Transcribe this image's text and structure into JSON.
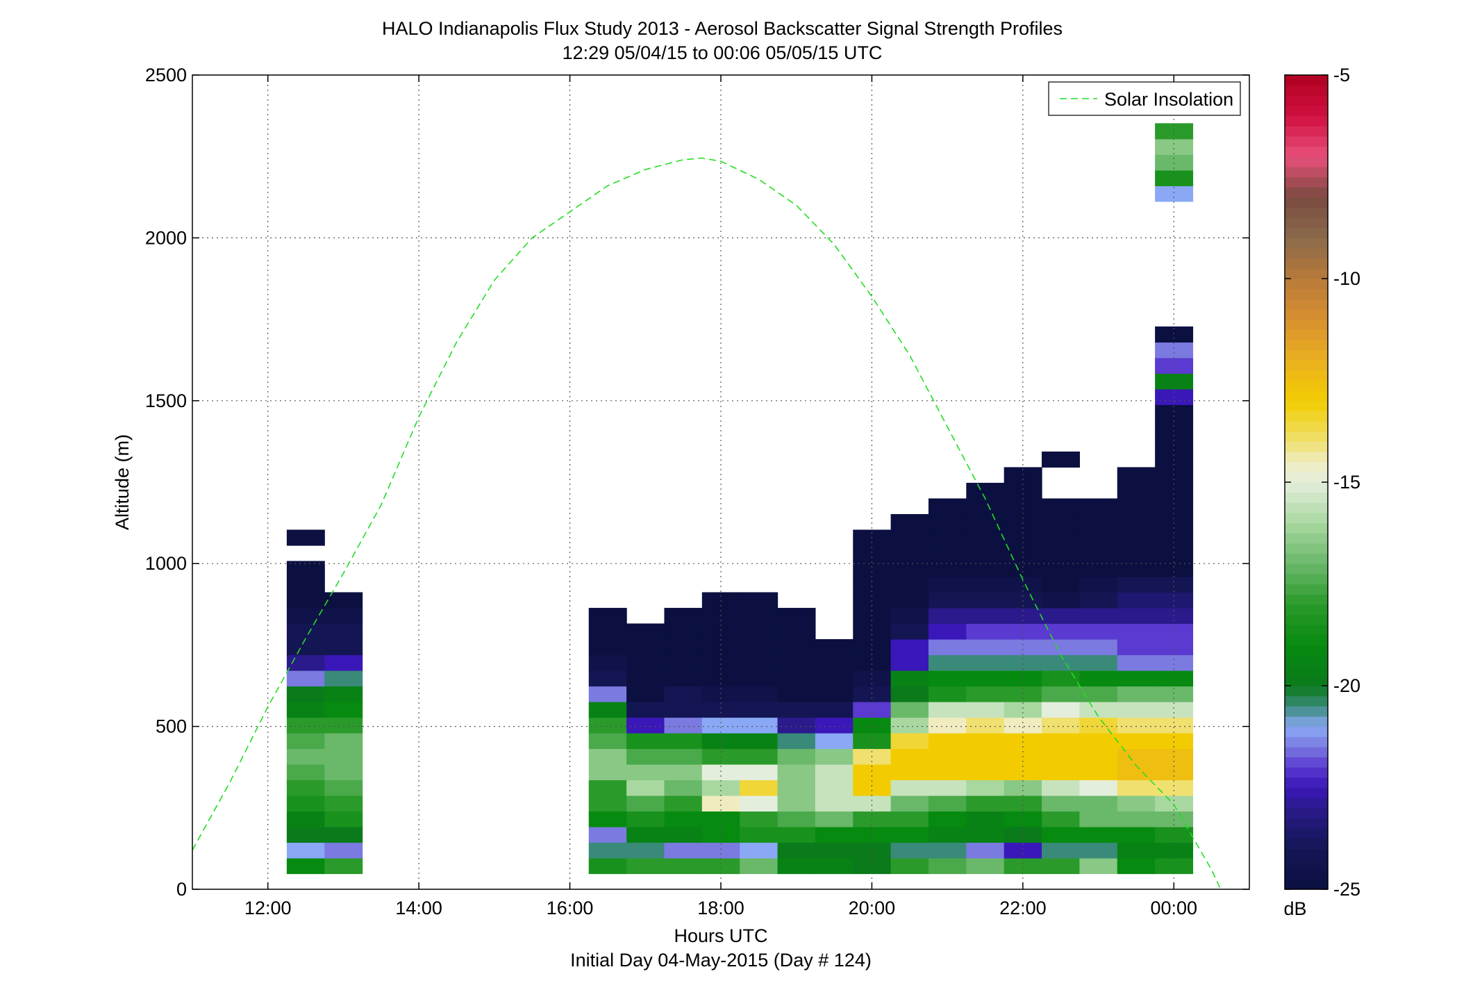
{
  "chart_data": {
    "type": "heatmap",
    "title": "HALO Indianapolis Flux Study 2013 - Aerosol Backscatter Signal Strength Profiles",
    "subtitle": "12:29 05/04/15 to 00:06 05/05/15  UTC",
    "xlabel": "Hours UTC",
    "xlabel2": "Initial Day 04-May-2015 (Day # 124)",
    "ylabel": "Altitude (m)",
    "xlim": [
      11.0,
      25.0
    ],
    "ylim": [
      0,
      2500
    ],
    "x_ticks": [
      12,
      14,
      16,
      18,
      20,
      22,
      24
    ],
    "x_tick_labels": [
      "12:00",
      "14:00",
      "16:00",
      "18:00",
      "20:00",
      "22:00",
      "00:00"
    ],
    "y_ticks": [
      0,
      500,
      1000,
      1500,
      2000,
      2500
    ],
    "y_tick_labels": [
      "0",
      "500",
      "1000",
      "1500",
      "2000",
      "2500"
    ],
    "grid": true,
    "legend": {
      "position": "top-right",
      "entries": [
        "Solar Insolation"
      ]
    },
    "colorbar": {
      "min": -25,
      "max": -5,
      "unit": "dB",
      "ticks": [
        -5,
        -10,
        -15,
        -20,
        -25
      ],
      "tick_labels": [
        "-5",
        "-10",
        "-15",
        "-20",
        "-25"
      ]
    },
    "cell_width_hours": 0.5,
    "cell_height_m": 48,
    "base_altitude_m": 48,
    "profiles": [
      {
        "t": 12.5,
        "v": [
          -19,
          -21,
          -20,
          -19.5,
          -18.5,
          -18,
          -17.5,
          -17,
          -17.5,
          -18,
          -19.5,
          -20,
          -21.5,
          -23,
          -24,
          -24,
          -24.5,
          -25,
          -25,
          -25,
          null,
          -25
        ]
      },
      {
        "t": 13.0,
        "v": [
          -18,
          -21.5,
          -20,
          -18.5,
          -18,
          -17.5,
          -17,
          -17,
          -17,
          -18,
          -19,
          -19.5,
          -20.5,
          -22.5,
          -24,
          -24,
          -24.5,
          -25
        ]
      },
      {
        "t": 16.5,
        "v": [
          -18.5,
          -20.5,
          -21.5,
          -19,
          -18,
          -18,
          -16.5,
          -16.5,
          -17.5,
          -18,
          -19.5,
          -21.5,
          -24,
          -24.5,
          -25,
          -25,
          -25
        ]
      },
      {
        "t": 17.0,
        "v": [
          -18,
          -20.5,
          -19.5,
          -18.5,
          -17.5,
          -16,
          -16.5,
          -17.5,
          -18.5,
          -22.5,
          -24,
          -25,
          -25,
          -25,
          -25,
          -25
        ]
      },
      {
        "t": 17.5,
        "v": [
          -18,
          -21.5,
          -19.5,
          -19,
          -18,
          -17,
          -16.5,
          -17.5,
          -18.5,
          -21.5,
          -24,
          -24,
          -25,
          -25,
          -25,
          -25,
          -25
        ]
      },
      {
        "t": 18.0,
        "v": [
          -18,
          -21.5,
          -19,
          -19,
          -14.5,
          -16,
          -15,
          -18,
          -19.5,
          -21,
          -24,
          -24.5,
          -25,
          -25,
          -25,
          -25,
          -25,
          -25
        ]
      },
      {
        "t": 18.5,
        "v": [
          -17,
          -21,
          -18.5,
          -18,
          -15,
          -13.5,
          -15,
          -18,
          -19.5,
          -21,
          -24,
          -24.5,
          -25,
          -25,
          -25,
          -25,
          -25,
          -25
        ]
      },
      {
        "t": 19.0,
        "v": [
          -19.5,
          -20,
          -18.5,
          -17.5,
          -16.5,
          -16.5,
          -16.5,
          -17,
          -20.5,
          -23,
          -24,
          -25,
          -25,
          -25,
          -25,
          -25,
          -25
        ]
      },
      {
        "t": 19.5,
        "v": [
          -19.5,
          -20,
          -19,
          -17,
          -15.5,
          -15.5,
          -15.5,
          -16.5,
          -21,
          -22.5,
          -24,
          -25,
          -25,
          -25,
          -25
        ]
      },
      {
        "t": 20.0,
        "v": [
          -20,
          -20,
          -19,
          -18,
          -15.5,
          -13,
          -13,
          -14,
          -18.5,
          -19,
          -22,
          -24,
          -24.5,
          -25,
          -25,
          -25,
          -25,
          -25,
          -25,
          -25,
          -25,
          -25
        ]
      },
      {
        "t": 20.5,
        "v": [
          -18,
          -20.5,
          -19,
          -18,
          -17,
          -15.5,
          -13,
          -13,
          -13.5,
          -16,
          -17,
          -20,
          -19.5,
          -22.5,
          -22.5,
          -24,
          -24.5,
          -25,
          -25,
          -25,
          -25,
          -25,
          -25
        ]
      },
      {
        "t": 21.0,
        "v": [
          -17.5,
          -20.5,
          -19.5,
          -19,
          -17.5,
          -15.5,
          -13,
          -13,
          -13,
          -14.5,
          -15.5,
          -18.5,
          -19,
          -20.5,
          -21.5,
          -22.5,
          -23,
          -24,
          -24.5,
          -25,
          -25,
          -25,
          -25,
          -25
        ]
      },
      {
        "t": 21.5,
        "v": [
          -17,
          -21.5,
          -19.5,
          -19.5,
          -18,
          -16,
          -13,
          -13,
          -13,
          -14,
          -15.5,
          -18,
          -19,
          -20.5,
          -21.5,
          -22,
          -23,
          -24,
          -24.5,
          -25,
          -25,
          -25,
          -25,
          -25,
          -25
        ]
      },
      {
        "t": 22.0,
        "v": [
          -18,
          -22.5,
          -20,
          -19,
          -18,
          -16.5,
          -13,
          -13,
          -13,
          -14.5,
          -16,
          -18,
          -19,
          -20.5,
          -21.5,
          -22,
          -23,
          -24,
          -24.5,
          -25,
          -25,
          -25,
          -25,
          -25,
          -25,
          -25
        ]
      },
      {
        "t": 22.5,
        "v": [
          -18,
          -20.5,
          -19,
          -18,
          -17,
          -15.5,
          -13,
          -13,
          -13,
          -14,
          -15,
          -17.5,
          -18.5,
          -20.5,
          -21.5,
          -22,
          -23,
          -24.5,
          -25,
          -25,
          -25,
          -25,
          -25,
          -25,
          null,
          null,
          -25
        ]
      },
      {
        "t": 23.0,
        "v": [
          -16.5,
          -20.5,
          -19,
          -17,
          -17,
          -15,
          -13,
          -13,
          -13,
          -13.5,
          -15.5,
          -17.5,
          -19,
          -20.5,
          -21.5,
          -22,
          -23,
          -24,
          -24.5,
          -25,
          -25,
          -25,
          -25,
          -25
        ]
      },
      {
        "t": 23.5,
        "v": [
          -19,
          -19.5,
          -19,
          -17,
          -16.5,
          -14,
          -12.5,
          -12.5,
          -13,
          -14,
          -15.5,
          -17,
          -19,
          -21.5,
          -22,
          -22,
          -23,
          -23.5,
          -24,
          -25,
          -25,
          -25,
          -25,
          -25,
          -25,
          -25
        ]
      },
      {
        "t": 24.0,
        "v": [
          -18.5,
          -19.5,
          -18.5,
          -17,
          -16,
          -14,
          -12.5,
          -12.5,
          -13,
          -14,
          -15.5,
          -17,
          -19,
          -21.5,
          -22,
          -22,
          -23,
          -23.5,
          -24,
          -25,
          -25,
          -25,
          -25,
          -25,
          -25,
          -25,
          -25,
          -25,
          -25,
          -25,
          -22.5,
          -19.5,
          -22,
          -21.5,
          -25,
          null,
          null,
          null,
          null,
          null,
          null,
          null,
          null,
          -21,
          -18.5,
          -17,
          -16.5,
          -18
        ]
      }
    ],
    "series": [
      {
        "name": "Solar Insolation",
        "style": "dashed",
        "color": "#22dd22",
        "x": [
          11.0,
          11.5,
          12.0,
          12.5,
          13.0,
          13.5,
          14.0,
          14.5,
          15.0,
          15.5,
          16.0,
          16.5,
          17.0,
          17.5,
          17.75,
          18.0,
          18.5,
          19.0,
          19.5,
          20.0,
          20.5,
          21.0,
          21.5,
          22.0,
          22.5,
          23.0,
          23.5,
          24.0,
          24.5,
          24.62
        ],
        "y": [
          120,
          330,
          560,
          770,
          970,
          1180,
          1450,
          1680,
          1870,
          2000,
          2080,
          2160,
          2210,
          2240,
          2245,
          2235,
          2180,
          2100,
          1980,
          1820,
          1640,
          1420,
          1200,
          950,
          720,
          530,
          380,
          260,
          60,
          0
        ]
      }
    ]
  }
}
